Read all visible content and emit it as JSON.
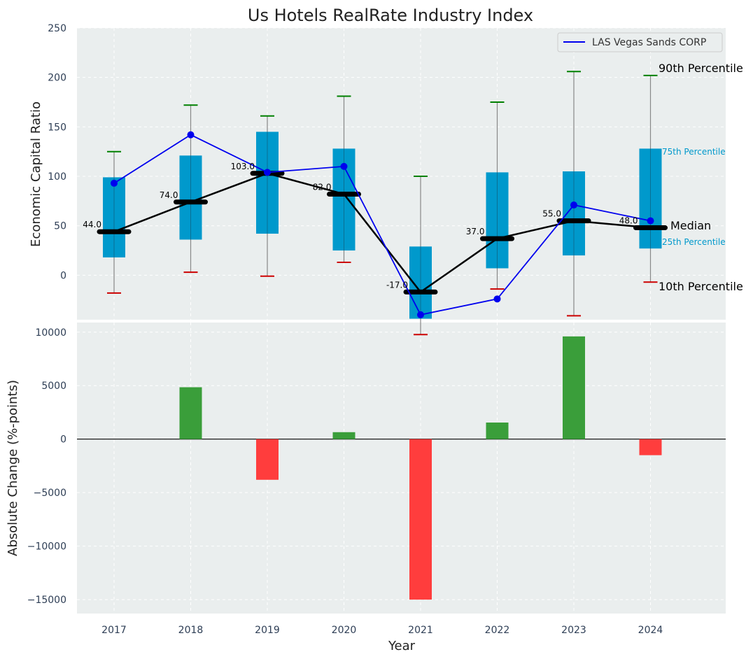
{
  "chart_data": [
    {
      "type": "box",
      "title": "Us Hotels RealRate Industry Index",
      "xlabel": "",
      "ylabel": "Economic Capital Ratio",
      "ylim": [
        -45,
        250
      ],
      "yticks": [
        0,
        50,
        100,
        150,
        200,
        250
      ],
      "categories": [
        "2017",
        "2018",
        "2019",
        "2020",
        "2021",
        "2022",
        "2023",
        "2024"
      ],
      "p90": [
        125,
        172,
        161,
        181,
        100,
        175,
        206,
        202
      ],
      "p75": [
        99,
        121,
        145,
        128,
        29,
        104,
        105,
        128
      ],
      "median": [
        44,
        74,
        103,
        82,
        -17,
        37,
        55,
        48
      ],
      "median_labels": [
        "44.0",
        "74.0",
        "103.0",
        "82.0",
        "-17.0",
        "37.0",
        "55.0",
        "48.0"
      ],
      "p25": [
        18,
        36,
        42,
        25,
        -44,
        7,
        20,
        27
      ],
      "p10": [
        -18,
        3,
        -1,
        13,
        -60,
        -14,
        -41,
        -7
      ],
      "series": [
        {
          "name": "LAS Vegas Sands CORP",
          "values": [
            93,
            142,
            104,
            110,
            -40,
            -24,
            71,
            55
          ]
        }
      ],
      "legend": [
        "LAS Vegas Sands CORP"
      ],
      "legend_position": "top-right",
      "annotations": {
        "p90": "90th Percentile",
        "p75": "75th Percentile",
        "median": "Median",
        "p25": "25th Percentile",
        "p10": "10th Percentile"
      },
      "grid": true
    },
    {
      "type": "bar",
      "title": "",
      "xlabel": "Year",
      "ylabel": "Absolute Change (%-points)",
      "ylim": [
        -16300,
        10900
      ],
      "yticks": [
        -15000,
        -10000,
        -5000,
        0,
        5000,
        10000
      ],
      "ytick_labels": [
        "−15000",
        "−10000",
        "−5000",
        "0",
        "5000",
        "10000"
      ],
      "categories": [
        "2017",
        "2018",
        "2019",
        "2020",
        "2021",
        "2022",
        "2023",
        "2024"
      ],
      "values": [
        0,
        4850,
        -3800,
        650,
        -15000,
        1550,
        9600,
        -1500
      ],
      "grid": true
    }
  ],
  "colors": {
    "box": "#0099cc",
    "median": "#000000",
    "company_line": "#0000ee",
    "p90_cap": "#008000",
    "p10_cap": "#cc0000",
    "positive_bar": "#3a9e3a",
    "negative_bar": "#ff3d3d",
    "panel_bg": "#eaeeee",
    "annotation_small": "#0099cc",
    "tick_text": "#2e3e55"
  }
}
